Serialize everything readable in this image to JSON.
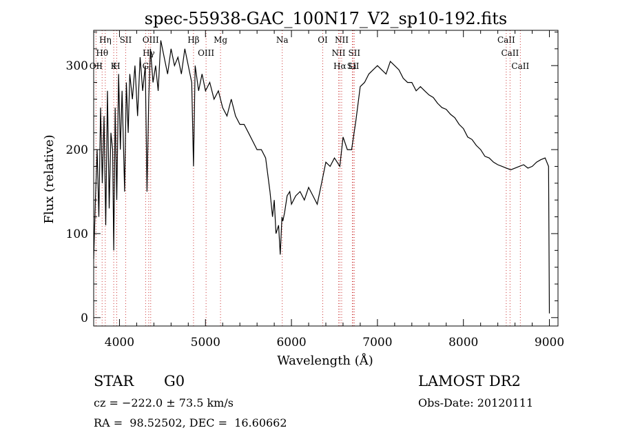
{
  "chart_data": {
    "type": "line",
    "title": "spec-55938-GAC_100N17_V2_sp10-192.fits",
    "xlabel": "Wavelength (Å)",
    "ylabel": "Flux (relative)",
    "xlim": [
      3700,
      9100
    ],
    "ylim": [
      -10,
      342
    ],
    "x_ticks": [
      4000,
      5000,
      6000,
      7000,
      8000,
      9000
    ],
    "y_ticks": [
      0,
      100,
      200,
      300
    ],
    "grid": false,
    "series": [
      {
        "color": "#000000",
        "x": [
          3700,
          3720,
          3740,
          3760,
          3780,
          3800,
          3820,
          3840,
          3860,
          3880,
          3900,
          3920,
          3933,
          3950,
          3968,
          3990,
          4010,
          4030,
          4060,
          4080,
          4101,
          4120,
          4150,
          4180,
          4210,
          4240,
          4270,
          4300,
          4320,
          4340,
          4360,
          4390,
          4420,
          4450,
          4480,
          4520,
          4560,
          4600,
          4640,
          4680,
          4720,
          4760,
          4800,
          4840,
          4861,
          4880,
          4920,
          4960,
          5000,
          5050,
          5100,
          5150,
          5200,
          5250,
          5300,
          5350,
          5400,
          5450,
          5500,
          5550,
          5600,
          5650,
          5700,
          5750,
          5780,
          5800,
          5820,
          5850,
          5870,
          5890,
          5900,
          5920,
          5950,
          5980,
          6000,
          6050,
          6100,
          6150,
          6200,
          6250,
          6300,
          6350,
          6400,
          6450,
          6500,
          6563,
          6600,
          6650,
          6700,
          6750,
          6800,
          6850,
          6900,
          6950,
          7000,
          7050,
          7100,
          7150,
          7200,
          7250,
          7300,
          7350,
          7400,
          7450,
          7500,
          7550,
          7600,
          7650,
          7700,
          7750,
          7800,
          7850,
          7900,
          7950,
          8000,
          8050,
          8100,
          8150,
          8200,
          8250,
          8300,
          8350,
          8400,
          8450,
          8500,
          8550,
          8600,
          8650,
          8700,
          8750,
          8800,
          8850,
          8900,
          8950,
          8990,
          9000
        ],
        "y": [
          70,
          140,
          200,
          120,
          250,
          160,
          240,
          110,
          270,
          130,
          220,
          200,
          80,
          250,
          140,
          290,
          200,
          270,
          150,
          280,
          220,
          290,
          260,
          300,
          240,
          310,
          270,
          300,
          150,
          260,
          320,
          280,
          300,
          270,
          330,
          310,
          290,
          320,
          300,
          310,
          290,
          320,
          300,
          280,
          180,
          300,
          270,
          290,
          270,
          280,
          260,
          270,
          250,
          240,
          260,
          240,
          230,
          230,
          220,
          210,
          200,
          200,
          190,
          150,
          120,
          140,
          100,
          110,
          75,
          120,
          115,
          125,
          145,
          150,
          135,
          145,
          150,
          140,
          155,
          145,
          135,
          160,
          185,
          180,
          190,
          180,
          215,
          200,
          200,
          235,
          275,
          280,
          290,
          295,
          300,
          295,
          290,
          305,
          300,
          295,
          285,
          280,
          280,
          270,
          275,
          270,
          265,
          262,
          255,
          250,
          248,
          242,
          238,
          230,
          225,
          215,
          212,
          205,
          200,
          192,
          190,
          185,
          182,
          180,
          178,
          176,
          178,
          180,
          182,
          178,
          180,
          185,
          188,
          190,
          180,
          5
        ]
      }
    ],
    "lines": [
      {
        "label": "Hη",
        "x": 3835
      },
      {
        "label": "Hθ",
        "x": 3798
      },
      {
        "label": "OII",
        "x": 3727
      },
      {
        "label": "SII",
        "x": 4072
      },
      {
        "label": "H",
        "x": 3968
      },
      {
        "label": "K",
        "x": 3933
      },
      {
        "label": "OIII",
        "x": 4363
      },
      {
        "label": "Hγ",
        "x": 4340
      },
      {
        "label": "G",
        "x": 4304
      },
      {
        "label": "Hβ",
        "x": 4861
      },
      {
        "label": "OIII",
        "x": 5007
      },
      {
        "label": "Mg",
        "x": 5175
      },
      {
        "label": "Na",
        "x": 5893
      },
      {
        "label": "OI",
        "x": 6364
      },
      {
        "label": "NII",
        "x": 6584
      },
      {
        "label": "NII",
        "x": 6548
      },
      {
        "label": "Hα",
        "x": 6563
      },
      {
        "label": "Li",
        "x": 6708
      },
      {
        "label": "SII",
        "x": 6717
      },
      {
        "label": "SII",
        "x": 6731
      },
      {
        "label": "CaII",
        "x": 8498
      },
      {
        "label": "CaII",
        "x": 8542
      },
      {
        "label": "CaII",
        "x": 8662
      }
    ]
  },
  "info": {
    "class": "STAR",
    "subclass": "G0",
    "survey": "LAMOST DR2",
    "cz": "cz = −222.0 ± 73.5 km/s",
    "obs_date": "Obs-Date: 20120111",
    "coords": "RA =  98.52502, DEC =  16.60662"
  }
}
